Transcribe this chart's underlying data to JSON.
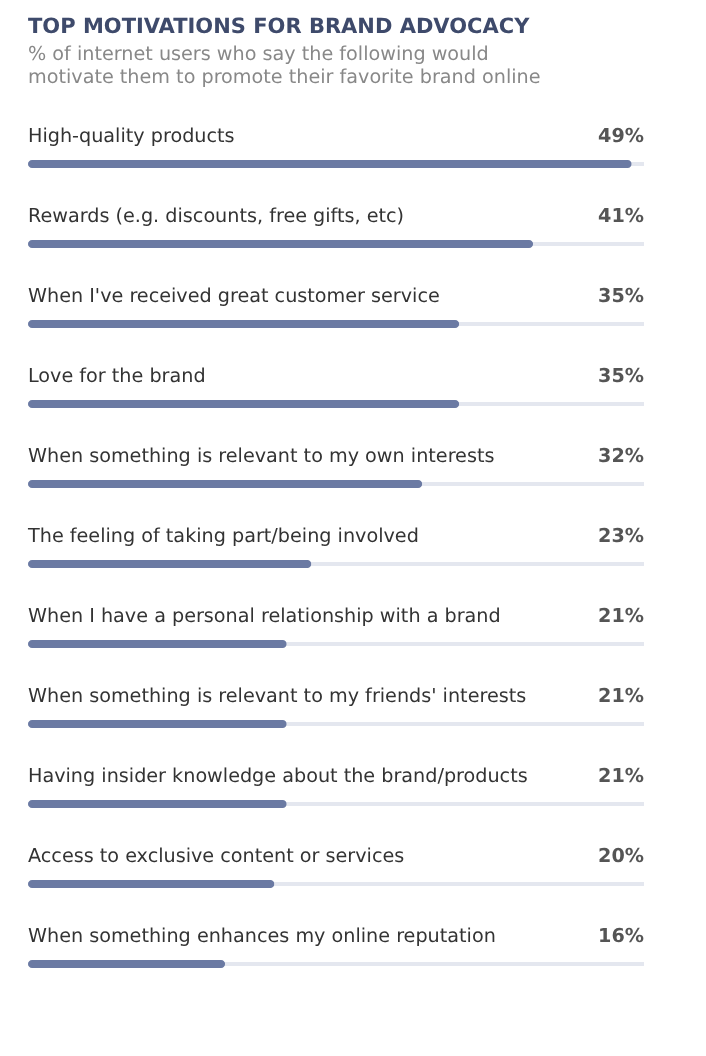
{
  "chart_data": {
    "type": "bar",
    "orientation": "horizontal",
    "title": "TOP MOTIVATIONS FOR BRAND ADVOCACY",
    "subtitle": "% of internet users who say the following would motivate them to promote their favorite brand online",
    "categories": [
      "High-quality products",
      "Rewards (e.g. discounts, free gifts, etc)",
      "When I've received great customer service",
      "Love for the brand",
      "When something is relevant to my own interests",
      "The feeling of taking part/being involved",
      "When I have a personal relationship with a brand",
      "When something is relevant to my friends' interests",
      "Having insider knowledge about the brand/products",
      "Access to exclusive content or services",
      "When something enhances my online reputation"
    ],
    "values": [
      49,
      41,
      35,
      35,
      32,
      23,
      21,
      21,
      21,
      20,
      16
    ],
    "value_labels": [
      "49%",
      "41%",
      "35%",
      "35%",
      "32%",
      "23%",
      "21%",
      "21%",
      "21%",
      "20%",
      "16%"
    ],
    "color": "#6b7aa3",
    "xlim": [
      0,
      50
    ]
  }
}
